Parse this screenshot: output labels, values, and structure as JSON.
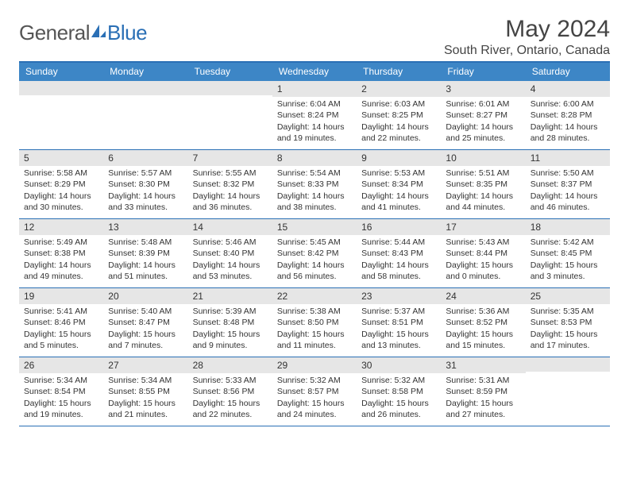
{
  "branding": {
    "text_general": "General",
    "text_blue": "Blue",
    "general_color": "#555555",
    "blue_color": "#2a6fb5"
  },
  "title": {
    "month_year": "May 2024",
    "location": "South River, Ontario, Canada"
  },
  "theme": {
    "header_bg": "#3d86c6",
    "header_text": "#ffffff",
    "rule_color": "#2a6fb5",
    "daynum_bg": "#e6e6e6",
    "body_text": "#333333",
    "page_bg": "#ffffff"
  },
  "days_of_week": [
    "Sunday",
    "Monday",
    "Tuesday",
    "Wednesday",
    "Thursday",
    "Friday",
    "Saturday"
  ],
  "weeks": [
    [
      null,
      null,
      null,
      {
        "n": "1",
        "sr": "Sunrise: 6:04 AM",
        "ss": "Sunset: 8:24 PM",
        "d1": "Daylight: 14 hours",
        "d2": "and 19 minutes."
      },
      {
        "n": "2",
        "sr": "Sunrise: 6:03 AM",
        "ss": "Sunset: 8:25 PM",
        "d1": "Daylight: 14 hours",
        "d2": "and 22 minutes."
      },
      {
        "n": "3",
        "sr": "Sunrise: 6:01 AM",
        "ss": "Sunset: 8:27 PM",
        "d1": "Daylight: 14 hours",
        "d2": "and 25 minutes."
      },
      {
        "n": "4",
        "sr": "Sunrise: 6:00 AM",
        "ss": "Sunset: 8:28 PM",
        "d1": "Daylight: 14 hours",
        "d2": "and 28 minutes."
      }
    ],
    [
      {
        "n": "5",
        "sr": "Sunrise: 5:58 AM",
        "ss": "Sunset: 8:29 PM",
        "d1": "Daylight: 14 hours",
        "d2": "and 30 minutes."
      },
      {
        "n": "6",
        "sr": "Sunrise: 5:57 AM",
        "ss": "Sunset: 8:30 PM",
        "d1": "Daylight: 14 hours",
        "d2": "and 33 minutes."
      },
      {
        "n": "7",
        "sr": "Sunrise: 5:55 AM",
        "ss": "Sunset: 8:32 PM",
        "d1": "Daylight: 14 hours",
        "d2": "and 36 minutes."
      },
      {
        "n": "8",
        "sr": "Sunrise: 5:54 AM",
        "ss": "Sunset: 8:33 PM",
        "d1": "Daylight: 14 hours",
        "d2": "and 38 minutes."
      },
      {
        "n": "9",
        "sr": "Sunrise: 5:53 AM",
        "ss": "Sunset: 8:34 PM",
        "d1": "Daylight: 14 hours",
        "d2": "and 41 minutes."
      },
      {
        "n": "10",
        "sr": "Sunrise: 5:51 AM",
        "ss": "Sunset: 8:35 PM",
        "d1": "Daylight: 14 hours",
        "d2": "and 44 minutes."
      },
      {
        "n": "11",
        "sr": "Sunrise: 5:50 AM",
        "ss": "Sunset: 8:37 PM",
        "d1": "Daylight: 14 hours",
        "d2": "and 46 minutes."
      }
    ],
    [
      {
        "n": "12",
        "sr": "Sunrise: 5:49 AM",
        "ss": "Sunset: 8:38 PM",
        "d1": "Daylight: 14 hours",
        "d2": "and 49 minutes."
      },
      {
        "n": "13",
        "sr": "Sunrise: 5:48 AM",
        "ss": "Sunset: 8:39 PM",
        "d1": "Daylight: 14 hours",
        "d2": "and 51 minutes."
      },
      {
        "n": "14",
        "sr": "Sunrise: 5:46 AM",
        "ss": "Sunset: 8:40 PM",
        "d1": "Daylight: 14 hours",
        "d2": "and 53 minutes."
      },
      {
        "n": "15",
        "sr": "Sunrise: 5:45 AM",
        "ss": "Sunset: 8:42 PM",
        "d1": "Daylight: 14 hours",
        "d2": "and 56 minutes."
      },
      {
        "n": "16",
        "sr": "Sunrise: 5:44 AM",
        "ss": "Sunset: 8:43 PM",
        "d1": "Daylight: 14 hours",
        "d2": "and 58 minutes."
      },
      {
        "n": "17",
        "sr": "Sunrise: 5:43 AM",
        "ss": "Sunset: 8:44 PM",
        "d1": "Daylight: 15 hours",
        "d2": "and 0 minutes."
      },
      {
        "n": "18",
        "sr": "Sunrise: 5:42 AM",
        "ss": "Sunset: 8:45 PM",
        "d1": "Daylight: 15 hours",
        "d2": "and 3 minutes."
      }
    ],
    [
      {
        "n": "19",
        "sr": "Sunrise: 5:41 AM",
        "ss": "Sunset: 8:46 PM",
        "d1": "Daylight: 15 hours",
        "d2": "and 5 minutes."
      },
      {
        "n": "20",
        "sr": "Sunrise: 5:40 AM",
        "ss": "Sunset: 8:47 PM",
        "d1": "Daylight: 15 hours",
        "d2": "and 7 minutes."
      },
      {
        "n": "21",
        "sr": "Sunrise: 5:39 AM",
        "ss": "Sunset: 8:48 PM",
        "d1": "Daylight: 15 hours",
        "d2": "and 9 minutes."
      },
      {
        "n": "22",
        "sr": "Sunrise: 5:38 AM",
        "ss": "Sunset: 8:50 PM",
        "d1": "Daylight: 15 hours",
        "d2": "and 11 minutes."
      },
      {
        "n": "23",
        "sr": "Sunrise: 5:37 AM",
        "ss": "Sunset: 8:51 PM",
        "d1": "Daylight: 15 hours",
        "d2": "and 13 minutes."
      },
      {
        "n": "24",
        "sr": "Sunrise: 5:36 AM",
        "ss": "Sunset: 8:52 PM",
        "d1": "Daylight: 15 hours",
        "d2": "and 15 minutes."
      },
      {
        "n": "25",
        "sr": "Sunrise: 5:35 AM",
        "ss": "Sunset: 8:53 PM",
        "d1": "Daylight: 15 hours",
        "d2": "and 17 minutes."
      }
    ],
    [
      {
        "n": "26",
        "sr": "Sunrise: 5:34 AM",
        "ss": "Sunset: 8:54 PM",
        "d1": "Daylight: 15 hours",
        "d2": "and 19 minutes."
      },
      {
        "n": "27",
        "sr": "Sunrise: 5:34 AM",
        "ss": "Sunset: 8:55 PM",
        "d1": "Daylight: 15 hours",
        "d2": "and 21 minutes."
      },
      {
        "n": "28",
        "sr": "Sunrise: 5:33 AM",
        "ss": "Sunset: 8:56 PM",
        "d1": "Daylight: 15 hours",
        "d2": "and 22 minutes."
      },
      {
        "n": "29",
        "sr": "Sunrise: 5:32 AM",
        "ss": "Sunset: 8:57 PM",
        "d1": "Daylight: 15 hours",
        "d2": "and 24 minutes."
      },
      {
        "n": "30",
        "sr": "Sunrise: 5:32 AM",
        "ss": "Sunset: 8:58 PM",
        "d1": "Daylight: 15 hours",
        "d2": "and 26 minutes."
      },
      {
        "n": "31",
        "sr": "Sunrise: 5:31 AM",
        "ss": "Sunset: 8:59 PM",
        "d1": "Daylight: 15 hours",
        "d2": "and 27 minutes."
      },
      null
    ]
  ]
}
